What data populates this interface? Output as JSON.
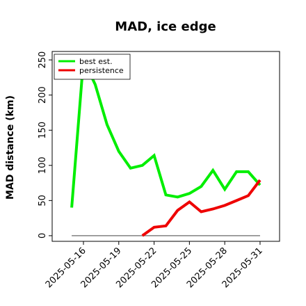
{
  "chart_data": {
    "type": "line",
    "title": "MAD, ice edge",
    "xlabel": "",
    "ylabel": "MAD distance (km)",
    "x": [
      "2025-05-15",
      "2025-05-16",
      "2025-05-17",
      "2025-05-18",
      "2025-05-19",
      "2025-05-20",
      "2025-05-21",
      "2025-05-22",
      "2025-05-23",
      "2025-05-24",
      "2025-05-25",
      "2025-05-26",
      "2025-05-27",
      "2025-05-28",
      "2025-05-29",
      "2025-05-30",
      "2025-05-31"
    ],
    "x_ticks": [
      "2025-05-16",
      "2025-05-19",
      "2025-05-22",
      "2025-05-25",
      "2025-05-28",
      "2025-05-31"
    ],
    "ylim": [
      -8,
      262
    ],
    "y_ticks": [
      0,
      50,
      100,
      150,
      200,
      250
    ],
    "baseline": 0,
    "baseline_color": "#808080",
    "legend_position": "top-left",
    "series": [
      {
        "name": "best est.",
        "color": "#00ee00",
        "values": [
          40,
          250,
          215,
          158,
          120,
          96,
          100,
          114,
          58,
          55,
          60,
          70,
          93,
          66,
          91,
          91,
          72
        ]
      },
      {
        "name": "persistence",
        "color": "#ee0000",
        "values": [
          null,
          null,
          null,
          null,
          null,
          null,
          0,
          12,
          14,
          36,
          48,
          34,
          38,
          43,
          50,
          57,
          79
        ]
      }
    ]
  }
}
